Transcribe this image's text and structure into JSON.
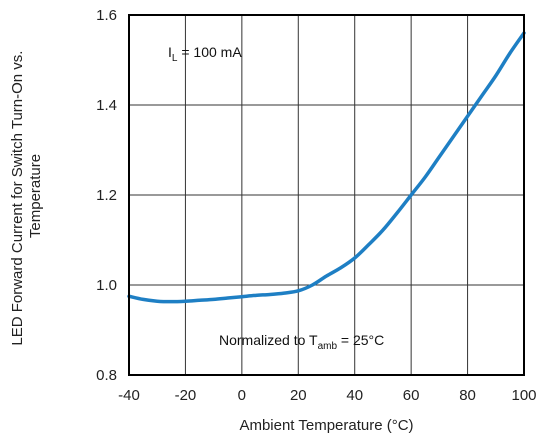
{
  "chart_data": {
    "type": "line",
    "xlabel": "Ambient Temperature (°C)",
    "ylabel": [
      "LED Forward Current for Switch Turn-On vs.",
      "Temperature"
    ],
    "xlim": [
      -40,
      100
    ],
    "ylim": [
      0.8,
      1.6
    ],
    "xticks": [
      -40,
      -20,
      0,
      20,
      40,
      60,
      80,
      100
    ],
    "yticks": [
      0.8,
      1.0,
      1.2,
      1.4,
      1.6
    ],
    "ytick_labels": [
      "0.8",
      "1.0",
      "1.2",
      "1.4",
      "1.6"
    ],
    "grid": true,
    "line_color": "#1e7fc4",
    "annotations": {
      "current": {
        "base": "I",
        "sub": "L",
        "rest": " = 100 mA"
      },
      "normalized": {
        "pre": "Normalized to T",
        "sub": "amb",
        "rest": " = 25°C"
      }
    },
    "series": [
      {
        "x": [
          -40,
          -35,
          -30,
          -25,
          -20,
          -15,
          -10,
          -5,
          0,
          5,
          10,
          15,
          20,
          25,
          30,
          35,
          40,
          45,
          50,
          55,
          60,
          65,
          70,
          75,
          80,
          85,
          90,
          95,
          100
        ],
        "y": [
          0.975,
          0.968,
          0.964,
          0.963,
          0.964,
          0.966,
          0.968,
          0.971,
          0.974,
          0.977,
          0.979,
          0.982,
          0.987,
          1.0,
          1.02,
          1.038,
          1.06,
          1.09,
          1.122,
          1.16,
          1.2,
          1.24,
          1.285,
          1.33,
          1.375,
          1.42,
          1.465,
          1.515,
          1.56
        ]
      }
    ]
  }
}
